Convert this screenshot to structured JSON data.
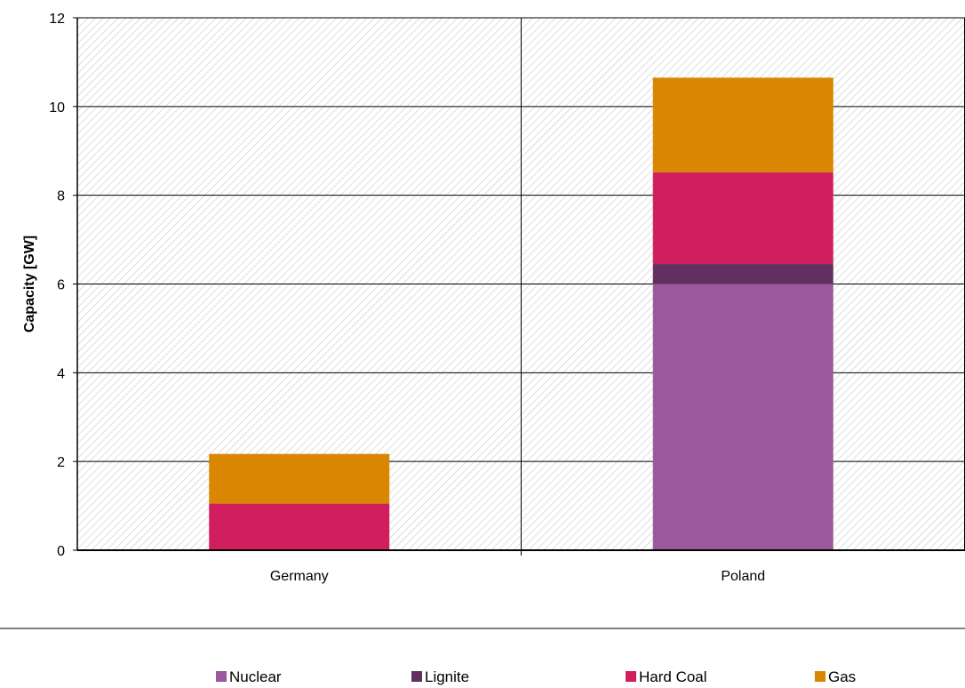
{
  "chart_data": {
    "type": "bar",
    "stacked": true,
    "categories": [
      "Germany",
      "Poland"
    ],
    "series": [
      {
        "name": "Nuclear",
        "color": "#9b589c",
        "values": [
          0,
          6.0
        ]
      },
      {
        "name": "Lignite",
        "color": "#62305f",
        "values": [
          0,
          0.45
        ]
      },
      {
        "name": "Hard Coal",
        "color": "#d11f5d",
        "values": [
          1.05,
          2.07
        ]
      },
      {
        "name": "Gas",
        "color": "#d98600",
        "values": [
          1.12,
          2.13
        ]
      }
    ],
    "title": "",
    "xlabel": "",
    "ylabel": "Capacity [GW]",
    "ylim": [
      0,
      12
    ],
    "yticks": [
      0,
      2,
      4,
      6,
      8,
      10,
      12
    ],
    "grid": true,
    "legend_position": "bottom",
    "background": "hatched"
  }
}
